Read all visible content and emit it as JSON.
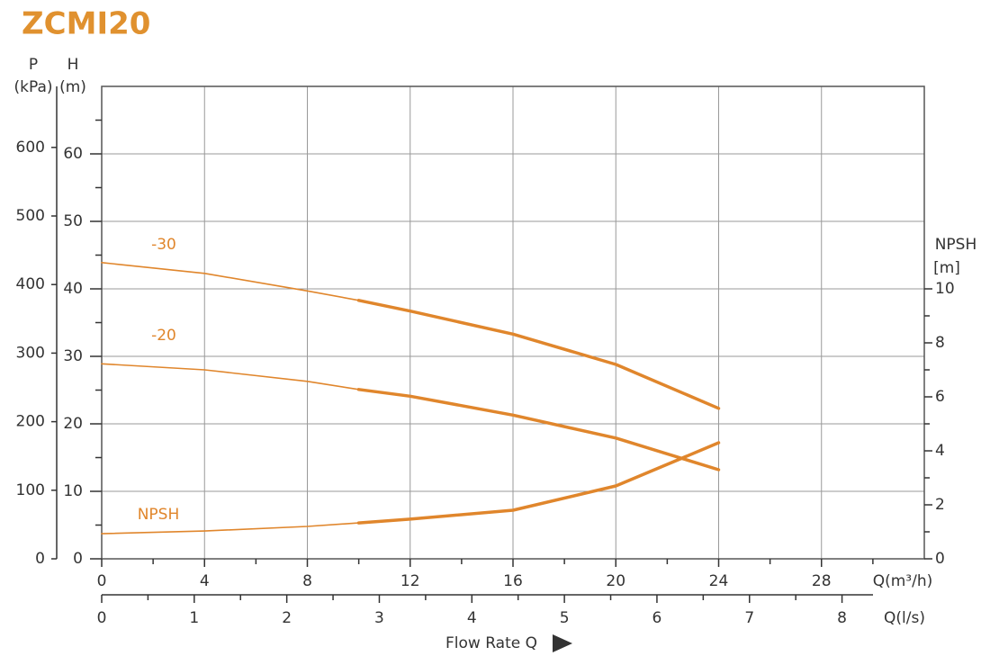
{
  "chart_data": {
    "type": "line",
    "title": "ZCMI20",
    "p_label": "P",
    "p_unit": "(kPa)",
    "h_label": "H",
    "h_unit": "(m)",
    "y2_label": "NPSH",
    "y2_unit": "[m]",
    "x_label": "Q(m³/h)",
    "x2_label": "Q(l/s)",
    "x_title": "Flow Rate Q",
    "x": [
      0,
      4,
      8,
      10,
      12,
      16,
      20,
      24
    ],
    "xlim": [
      0,
      32
    ],
    "xticks": [
      0,
      4,
      8,
      12,
      16,
      20,
      24,
      28
    ],
    "x2lim": [
      0,
      8.889
    ],
    "x2ticks": [
      0,
      1,
      2,
      3,
      4,
      5,
      6,
      7,
      8
    ],
    "ylim": [
      0,
      70
    ],
    "yticks": [
      0,
      10,
      20,
      30,
      40,
      50,
      60
    ],
    "plim": [
      0,
      689
    ],
    "pticks": [
      0,
      100,
      200,
      300,
      400,
      500,
      600
    ],
    "y2lim": [
      0,
      17.5
    ],
    "y2ticks": [
      0,
      2,
      4,
      6,
      8,
      10
    ],
    "bold_range": [
      10,
      24
    ],
    "grid": true,
    "series": [
      {
        "name": "-30",
        "color": "#e0862c",
        "values": [
          43.9,
          42.3,
          39.7,
          38.3,
          36.7,
          33.3,
          28.8,
          22.3
        ]
      },
      {
        "name": "-20",
        "color": "#e0862c",
        "values": [
          28.9,
          28.0,
          26.3,
          25.1,
          24.1,
          21.3,
          17.9,
          13.2
        ]
      },
      {
        "name": "NPSH",
        "color": "#e0862c",
        "axis": "y2",
        "values": [
          0.93,
          1.03,
          1.2,
          1.33,
          1.47,
          1.8,
          2.7,
          4.3
        ]
      }
    ]
  }
}
